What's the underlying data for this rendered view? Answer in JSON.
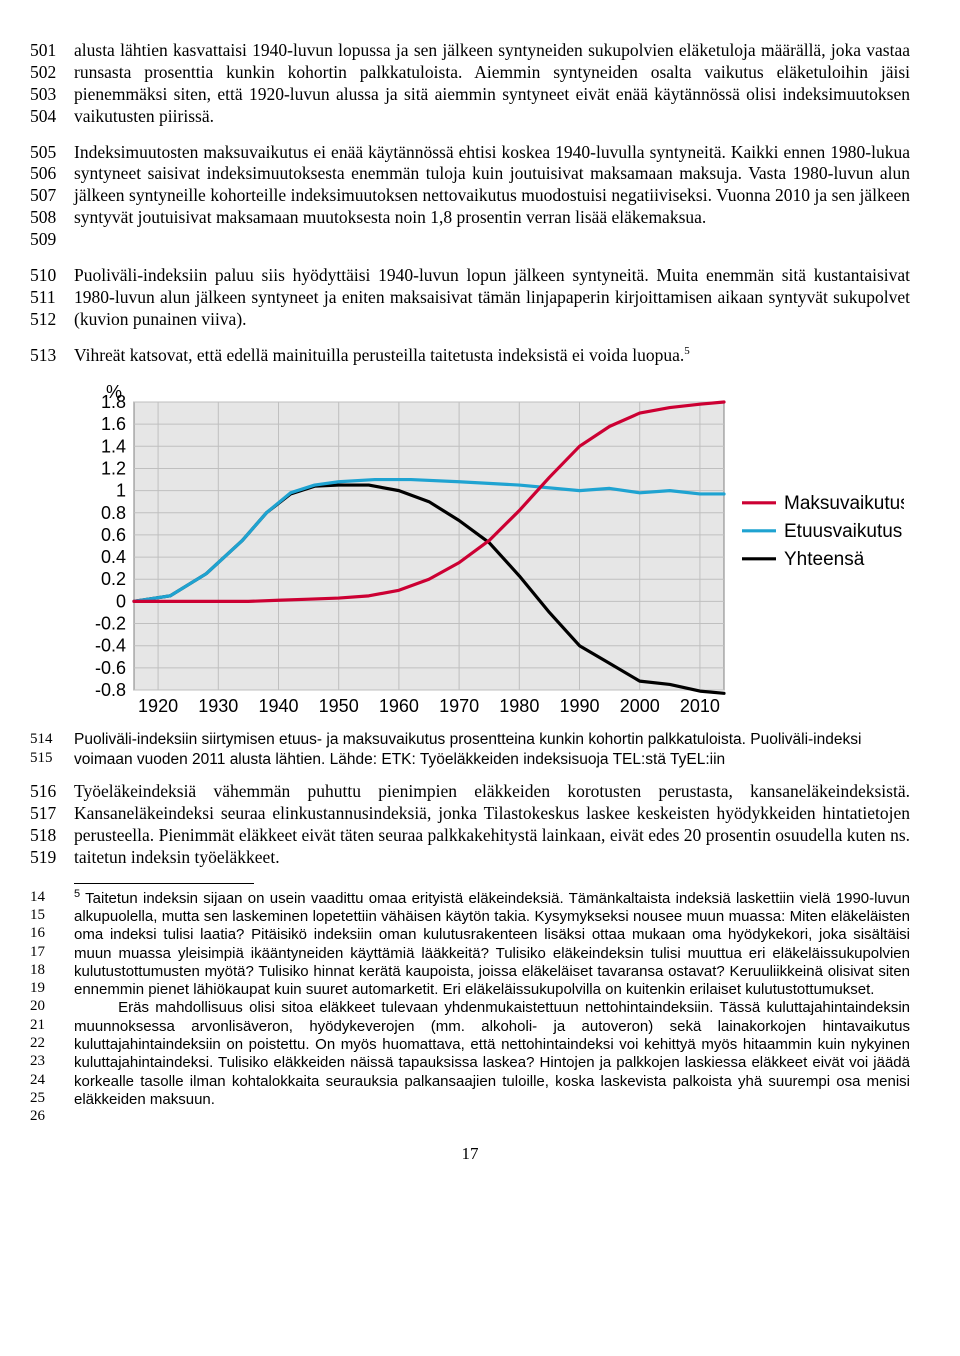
{
  "paragraphs": {
    "p1": {
      "linenums": [
        "501",
        "502",
        "503",
        "504"
      ],
      "text": "alusta lähtien kasvattaisi 1940-luvun lopussa ja sen jälkeen syntyneiden sukupolvien eläketuloja määrällä, joka vastaa runsasta prosenttia kunkin kohortin palkkatuloista. Aiemmin syntyneiden osalta vaikutus eläketuloihin jäisi pienemmäksi siten, että 1920-luvun alussa ja sitä aiemmin syntyneet eivät enää käytännössä olisi indeksimuutoksen vaikutusten piirissä."
    },
    "p2": {
      "linenums": [
        "505",
        "506",
        "507",
        "508",
        "509"
      ],
      "text": "Indeksimuutosten maksuvaikutus ei enää käytännössä ehtisi koskea 1940-luvulla syntyneitä. Kaikki ennen 1980-lukua syntyneet saisivat indeksimuutoksesta enemmän tuloja kuin joutuisivat maksamaan maksuja. Vasta 1980-luvun alun jälkeen syntyneille kohorteille indeksimuutoksen nettovaikutus muodostuisi negatiiviseksi. Vuonna 2010 ja sen jälkeen syntyvät joutuisivat maksamaan muutoksesta noin 1,8 prosentin verran lisää eläkemaksua."
    },
    "p3": {
      "linenums": [
        "510",
        "511",
        "512"
      ],
      "text": "Puoliväli-indeksiin paluu siis hyödyttäisi 1940-luvun lopun jälkeen syntyneitä. Muita enemmän sitä kustantaisivat 1980-luvun alun jälkeen syntyneet ja eniten maksaisivat tämän linjapaperin kirjoittamisen aikaan syntyvät sukupolvet (kuvion punainen viiva)."
    },
    "p4": {
      "linenums": [
        "513"
      ],
      "text_a": "Vihreät katsovat, että edellä mainituilla perusteilla taitetusta indeksistä ei voida luopua.",
      "sup": "5"
    },
    "caption": {
      "linenums": [
        "514",
        "515"
      ],
      "text": "Puoliväli-indeksiin siirtymisen etuus- ja maksuvaikutus prosentteina kunkin kohortin palkkatuloista. Puoliväli-indeksi voimaan vuoden 2011 alusta lähtien. Lähde: ETK: Työeläkkeiden indeksisuoja TEL:stä TyEL:iin"
    },
    "p5": {
      "linenums": [
        "516",
        "517",
        "518",
        "519"
      ],
      "text": "Työeläkeindeksiä vähemmän puhuttu pienimpien eläkkeiden korotusten perustasta, kansaneläkeindeksistä. Kansaneläkeindeksi seuraa elinkustannusindeksiä, jonka Tilastokeskus laskee keskeisten hyödykkeiden hintatietojen perusteella. Pienimmät eläkkeet eivät täten seuraa palkkakehitystä lainkaan, eivät edes 20 prosentin osuudella kuten ns. taitetun indeksin työeläkkeet."
    }
  },
  "footnote": {
    "linenums": [
      "14",
      "15",
      "16",
      "17",
      "18",
      "19",
      "20",
      "21",
      "22",
      "23",
      "24",
      "25",
      "26"
    ],
    "sup": "5",
    "text": " Taitetun indeksin sijaan on usein vaadittu omaa erityistä eläkeindeksiä. Tämänkaltaista indeksiä laskettiin vielä 1990-luvun alkupuolella, mutta sen laskeminen lopetettiin vähäisen käytön takia. Kysymykseksi nousee muun muassa: Miten eläkeläisten oma indeksi tulisi laatia? Pitäisikö indeksiin oman kulutusrakenteen lisäksi ottaa mukaan oma hyödykekori, joka sisältäisi muun muassa yleisimpiä ikääntyneiden käyttämiä lääkkeitä? Tulisiko eläkeindeksin tulisi muuttua eri eläkeläissukupolvien kulutustottumusten myötä? Tulisiko hinnat kerätä kaupoista, joissa eläkeläiset tavaransa ostavat? Keruuliikkeinä olisivat siten ennemmin pienet lähiökaupat kuin suuret automarketit. Eri eläkeläissukupolvilla on kuitenkin erilaiset kulutustottumukset.\n       Eräs mahdollisuus olisi sitoa eläkkeet tulevaan yhdenmukaistettuun nettohintaindeksiin. Tässä kuluttajahintaindeksin muunnoksessa arvonlisäveron, hyödykeverojen (mm. alkoholi- ja autoveron) sekä lainakorkojen hintavaikutus kuluttajahintaindeksiin on poistettu. On myös huomattava, että nettohintaindeksi voi kehittyä myös hitaammin kuin nykyinen kuluttajahintaindeksi. Tulisiko eläkkeiden näissä tapauksissa laskea? Hintojen ja palkkojen laskiessa eläkkeet eivät voi jäädä korkealle tasolle ilman kohtalokkaita seurauksia palkansaajien tuloille, koska laskevista palkoista yhä suurempi osa menisi eläkkeiden maksuun."
  },
  "chart": {
    "type": "line",
    "percent_label": "%",
    "xlim": [
      1916,
      2014
    ],
    "x_ticks": [
      1920,
      1930,
      1940,
      1950,
      1960,
      1970,
      1980,
      1990,
      2000,
      2010
    ],
    "ylim": [
      -0.8,
      1.8
    ],
    "y_ticks_pos": [
      0,
      0.2,
      0.4,
      0.6,
      0.8,
      1,
      1.2,
      1.4,
      1.6,
      1.8
    ],
    "y_ticks_neg": [
      -0.2,
      -0.4,
      -0.6,
      -0.8
    ],
    "y_labels_pos": [
      "0",
      "0.2",
      "0.4",
      "0.6",
      "0.8",
      "1",
      "1.2",
      "1.4",
      "1.6",
      "1.8"
    ],
    "y_labels_neg": [
      "-0.2",
      "-0.4",
      "-0.6",
      "-0.8"
    ],
    "plot_bg": "#e6e6e6",
    "grid_color": "#bfbfbf",
    "axis_color": "#808080",
    "line_width": 3.2,
    "series": {
      "maksu": {
        "label": "Maksuvaikutus",
        "color": "#cc0033",
        "points": [
          [
            1916,
            0.0
          ],
          [
            1925,
            0.0
          ],
          [
            1935,
            0.0
          ],
          [
            1940,
            0.01
          ],
          [
            1945,
            0.02
          ],
          [
            1950,
            0.03
          ],
          [
            1955,
            0.05
          ],
          [
            1960,
            0.1
          ],
          [
            1965,
            0.2
          ],
          [
            1970,
            0.35
          ],
          [
            1975,
            0.55
          ],
          [
            1980,
            0.82
          ],
          [
            1985,
            1.12
          ],
          [
            1990,
            1.4
          ],
          [
            1995,
            1.58
          ],
          [
            2000,
            1.7
          ],
          [
            2005,
            1.75
          ],
          [
            2010,
            1.78
          ],
          [
            2014,
            1.8
          ]
        ]
      },
      "etuus": {
        "label": "Etuusvaikutus",
        "color": "#1fa3d1",
        "points": [
          [
            1916,
            0.0
          ],
          [
            1922,
            0.05
          ],
          [
            1928,
            0.25
          ],
          [
            1934,
            0.55
          ],
          [
            1938,
            0.8
          ],
          [
            1942,
            0.98
          ],
          [
            1946,
            1.05
          ],
          [
            1950,
            1.08
          ],
          [
            1956,
            1.1
          ],
          [
            1962,
            1.1
          ],
          [
            1970,
            1.08
          ],
          [
            1980,
            1.05
          ],
          [
            1990,
            1.0
          ],
          [
            1995,
            1.02
          ],
          [
            2000,
            0.98
          ],
          [
            2005,
            1.0
          ],
          [
            2010,
            0.97
          ],
          [
            2014,
            0.97
          ]
        ]
      },
      "yhteensa": {
        "label": "Yhteensä",
        "color": "#000000",
        "points": [
          [
            1916,
            0.0
          ],
          [
            1922,
            0.05
          ],
          [
            1928,
            0.25
          ],
          [
            1934,
            0.55
          ],
          [
            1938,
            0.8
          ],
          [
            1942,
            0.97
          ],
          [
            1946,
            1.04
          ],
          [
            1950,
            1.05
          ],
          [
            1955,
            1.05
          ],
          [
            1960,
            1.0
          ],
          [
            1965,
            0.9
          ],
          [
            1970,
            0.73
          ],
          [
            1975,
            0.53
          ],
          [
            1980,
            0.23
          ],
          [
            1985,
            -0.1
          ],
          [
            1990,
            -0.4
          ],
          [
            1995,
            -0.56
          ],
          [
            2000,
            -0.72
          ],
          [
            2005,
            -0.75
          ],
          [
            2010,
            -0.81
          ],
          [
            2014,
            -0.83
          ]
        ]
      }
    }
  },
  "pagenum": "17"
}
